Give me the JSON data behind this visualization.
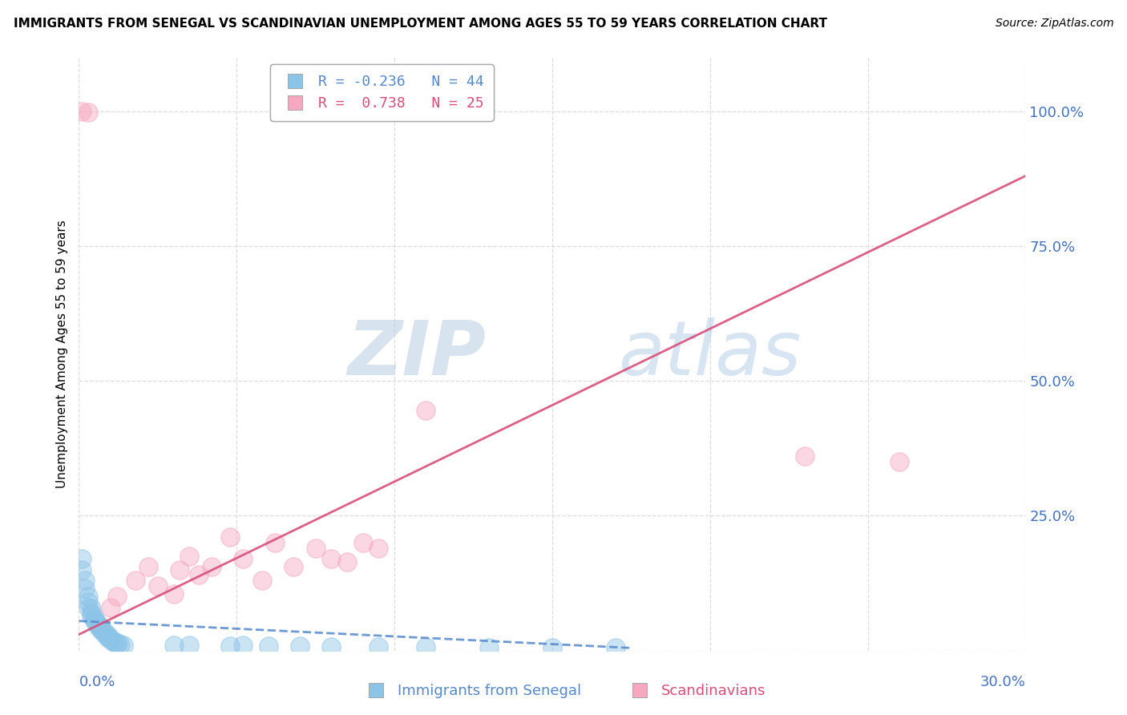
{
  "title": "IMMIGRANTS FROM SENEGAL VS SCANDINAVIAN UNEMPLOYMENT AMONG AGES 55 TO 59 YEARS CORRELATION CHART",
  "source": "Source: ZipAtlas.com",
  "ylabel": "Unemployment Among Ages 55 to 59 years",
  "xlim": [
    0.0,
    0.3
  ],
  "ylim": [
    0.0,
    1.1
  ],
  "legend_blue_label": "Immigrants from Senegal",
  "legend_pink_label": "Scandinavians",
  "R_blue": -0.236,
  "N_blue": 44,
  "R_pink": 0.738,
  "N_pink": 25,
  "blue_color": "#8cc4e8",
  "pink_color": "#f5a8c0",
  "blue_line_color": "#5588cc",
  "pink_line_color": "#d94f7a",
  "watermark_zip": "ZIP",
  "watermark_atlas": "atlas",
  "blue_points": [
    [
      0.001,
      0.17
    ],
    [
      0.001,
      0.15
    ],
    [
      0.002,
      0.13
    ],
    [
      0.002,
      0.115
    ],
    [
      0.003,
      0.1
    ],
    [
      0.003,
      0.09
    ],
    [
      0.003,
      0.08
    ],
    [
      0.004,
      0.078
    ],
    [
      0.004,
      0.07
    ],
    [
      0.004,
      0.065
    ],
    [
      0.005,
      0.06
    ],
    [
      0.005,
      0.058
    ],
    [
      0.005,
      0.055
    ],
    [
      0.006,
      0.05
    ],
    [
      0.006,
      0.048
    ],
    [
      0.006,
      0.045
    ],
    [
      0.007,
      0.042
    ],
    [
      0.007,
      0.04
    ],
    [
      0.007,
      0.038
    ],
    [
      0.008,
      0.035
    ],
    [
      0.008,
      0.032
    ],
    [
      0.009,
      0.03
    ],
    [
      0.009,
      0.028
    ],
    [
      0.009,
      0.025
    ],
    [
      0.01,
      0.022
    ],
    [
      0.01,
      0.02
    ],
    [
      0.011,
      0.018
    ],
    [
      0.011,
      0.016
    ],
    [
      0.012,
      0.015
    ],
    [
      0.012,
      0.013
    ],
    [
      0.013,
      0.012
    ],
    [
      0.014,
      0.01
    ],
    [
      0.03,
      0.01
    ],
    [
      0.035,
      0.01
    ],
    [
      0.048,
      0.008
    ],
    [
      0.052,
      0.01
    ],
    [
      0.06,
      0.008
    ],
    [
      0.07,
      0.008
    ],
    [
      0.08,
      0.007
    ],
    [
      0.095,
      0.007
    ],
    [
      0.11,
      0.007
    ],
    [
      0.13,
      0.006
    ],
    [
      0.15,
      0.006
    ],
    [
      0.17,
      0.006
    ]
  ],
  "pink_points": [
    [
      0.001,
      1.0
    ],
    [
      0.003,
      0.998
    ],
    [
      0.01,
      0.08
    ],
    [
      0.012,
      0.1
    ],
    [
      0.018,
      0.13
    ],
    [
      0.022,
      0.155
    ],
    [
      0.025,
      0.12
    ],
    [
      0.03,
      0.105
    ],
    [
      0.032,
      0.15
    ],
    [
      0.035,
      0.175
    ],
    [
      0.038,
      0.14
    ],
    [
      0.042,
      0.155
    ],
    [
      0.048,
      0.21
    ],
    [
      0.052,
      0.17
    ],
    [
      0.058,
      0.13
    ],
    [
      0.062,
      0.2
    ],
    [
      0.068,
      0.155
    ],
    [
      0.075,
      0.19
    ],
    [
      0.08,
      0.17
    ],
    [
      0.085,
      0.165
    ],
    [
      0.09,
      0.2
    ],
    [
      0.095,
      0.19
    ],
    [
      0.11,
      0.445
    ],
    [
      0.23,
      0.36
    ],
    [
      0.26,
      0.35
    ]
  ],
  "blue_trend_x": [
    0.0,
    0.175
  ],
  "blue_trend_y": [
    0.055,
    0.005
  ],
  "pink_trend_x": [
    0.0,
    0.3
  ],
  "pink_trend_y": [
    0.03,
    0.88
  ],
  "y_ticks": [
    0.0,
    0.25,
    0.5,
    0.75,
    1.0
  ],
  "y_tick_labels": [
    "",
    "25.0%",
    "50.0%",
    "75.0%",
    "100.0%"
  ],
  "x_ticks": [
    0.0,
    0.05,
    0.1,
    0.15,
    0.2,
    0.25,
    0.3
  ],
  "grid_color": "#dddddd",
  "bg_color": "#ffffff"
}
